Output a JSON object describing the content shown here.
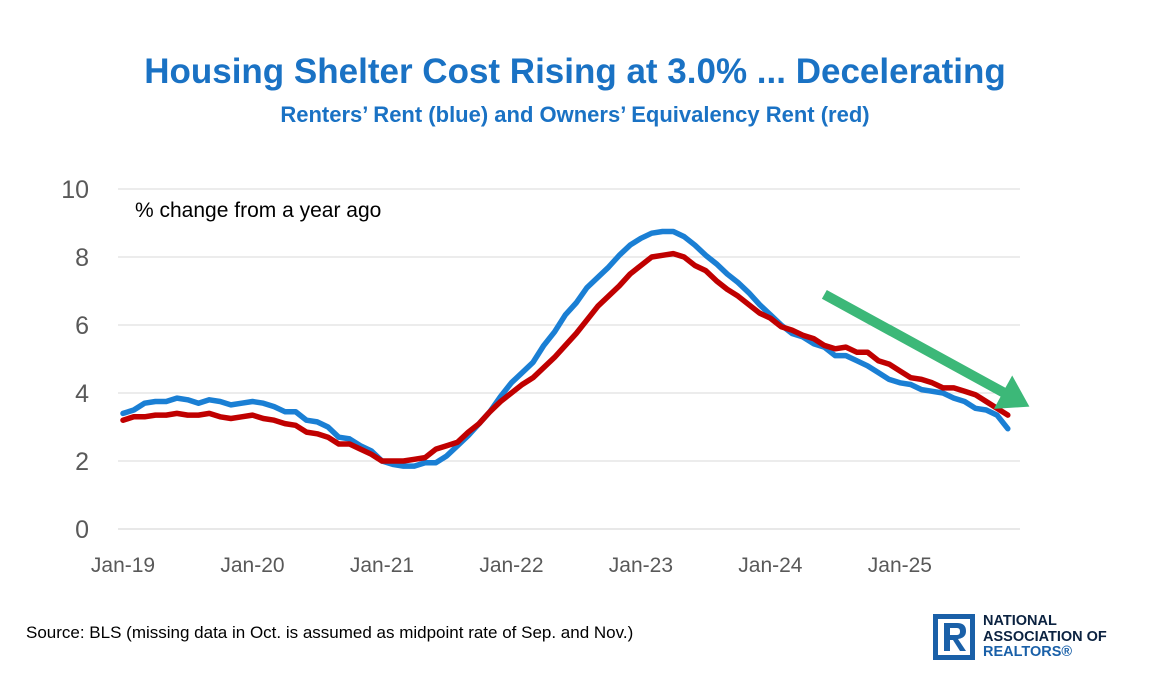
{
  "header": {
    "title": "Housing Shelter Cost Rising at 3.0% ... Decelerating",
    "subtitle": "Renters’ Rent (blue) and Owners’ Equivalency Rent (red)"
  },
  "footer": {
    "source": "Source: BLS (missing data in Oct. is assumed as midpoint rate of Sep. and Nov.)"
  },
  "logo": {
    "line1": "NATIONAL",
    "line2": "ASSOCIATION OF",
    "line3": "REALTORS®"
  },
  "colors": {
    "title": "#1a72c4",
    "renters_rent": "#1a7fd4",
    "owners_equivalent_rent": "#c00000",
    "arrow": "#3cb878",
    "grid": "#d9d9d9",
    "axis_text": "#595959"
  },
  "chart_data": {
    "type": "line",
    "title": "Housing Shelter Cost Rising at 3.0% ... Decelerating",
    "subtitle": "Renters’ Rent (blue) and Owners’ Equivalency Rent (red)",
    "annotation": "% change from a year ago",
    "xlabel": "",
    "ylabel": "",
    "ylim": [
      0,
      10
    ],
    "yticks": [
      0,
      2,
      4,
      6,
      8,
      10
    ],
    "xtick_labels": [
      "Jan-19",
      "Jan-20",
      "Jan-21",
      "Jan-22",
      "Jan-23",
      "Jan-24",
      "Jan-25"
    ],
    "x_start": "Jan-19",
    "x_end": "Nov-25",
    "grid": true,
    "trend_arrow": {
      "direction": "down",
      "from": {
        "x": "Jun-24",
        "y": 6.9
      },
      "to": {
        "x": "Jan-26",
        "y": 3.6
      }
    },
    "series": [
      {
        "name": "Renters’ Rent",
        "color": "#1a7fd4",
        "values": [
          3.4,
          3.5,
          3.7,
          3.75,
          3.75,
          3.85,
          3.8,
          3.7,
          3.8,
          3.75,
          3.65,
          3.7,
          3.75,
          3.7,
          3.6,
          3.45,
          3.45,
          3.2,
          3.15,
          3.0,
          2.7,
          2.65,
          2.45,
          2.3,
          2.0,
          1.9,
          1.85,
          1.85,
          1.95,
          1.95,
          2.15,
          2.45,
          2.75,
          3.1,
          3.45,
          3.9,
          4.3,
          4.6,
          4.9,
          5.4,
          5.8,
          6.3,
          6.65,
          7.1,
          7.4,
          7.7,
          8.05,
          8.35,
          8.55,
          8.7,
          8.75,
          8.75,
          8.6,
          8.35,
          8.05,
          7.8,
          7.5,
          7.25,
          6.95,
          6.6,
          6.3,
          6.0,
          5.75,
          5.65,
          5.45,
          5.35,
          5.1,
          5.1,
          4.95,
          4.8,
          4.6,
          4.4,
          4.3,
          4.25,
          4.1,
          4.05,
          4.0,
          3.85,
          3.75,
          3.55,
          3.5,
          3.35,
          2.95
        ]
      },
      {
        "name": "Owners’ Equivalency Rent",
        "color": "#c00000",
        "values": [
          3.2,
          3.3,
          3.3,
          3.35,
          3.35,
          3.4,
          3.35,
          3.35,
          3.4,
          3.3,
          3.25,
          3.3,
          3.35,
          3.25,
          3.2,
          3.1,
          3.05,
          2.85,
          2.8,
          2.7,
          2.5,
          2.5,
          2.35,
          2.2,
          2.0,
          2.0,
          2.0,
          2.05,
          2.1,
          2.35,
          2.45,
          2.55,
          2.85,
          3.1,
          3.45,
          3.75,
          4.0,
          4.25,
          4.45,
          4.75,
          5.05,
          5.4,
          5.75,
          6.15,
          6.55,
          6.85,
          7.15,
          7.5,
          7.75,
          8.0,
          8.05,
          8.1,
          8.0,
          7.75,
          7.6,
          7.3,
          7.05,
          6.85,
          6.6,
          6.35,
          6.2,
          5.95,
          5.85,
          5.7,
          5.6,
          5.4,
          5.3,
          5.35,
          5.2,
          5.2,
          4.95,
          4.85,
          4.65,
          4.45,
          4.4,
          4.3,
          4.15,
          4.15,
          4.05,
          3.95,
          3.75,
          3.55,
          3.35
        ]
      }
    ]
  }
}
